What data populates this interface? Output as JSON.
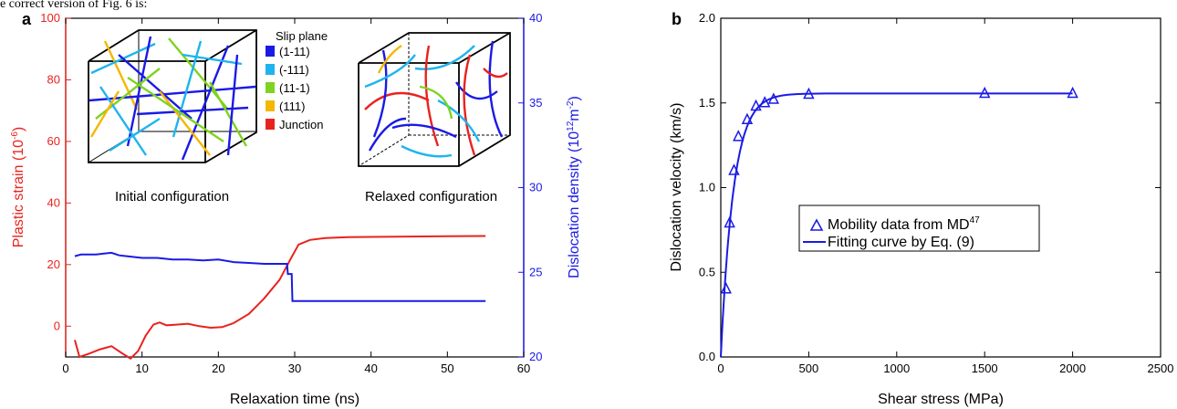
{
  "header_note": "e correct version of Fig. 6 is:",
  "colors": {
    "red": "#e8231e",
    "blue": "#1a1ae6",
    "black": "#000000"
  },
  "chart_data": [
    {
      "type": "line",
      "panel_label": "a",
      "xlabel": "Relaxation time (ns)",
      "ylabel_left_main": "Plastic strain (10",
      "ylabel_left_sup": "-6",
      "ylabel_left_end": ")",
      "ylabel_right_main": "Dislocation density (10",
      "ylabel_right_sup": "12",
      "ylabel_right_mid": "m",
      "ylabel_right_sup2": "-2",
      "ylabel_right_end": ")",
      "xlim": [
        0,
        60
      ],
      "ylim_left": [
        -10,
        100
      ],
      "ylim_right": [
        20,
        40
      ],
      "x_ticks": [
        0,
        10,
        20,
        30,
        40,
        50,
        60
      ],
      "y_ticks_left": [
        0,
        20,
        40,
        60,
        80,
        100
      ],
      "y_ticks_right": [
        20,
        25,
        30,
        35,
        40
      ],
      "series": [
        {
          "axis": "left",
          "color": "#e8231e",
          "points": [
            [
              1.2,
              -4.5
            ],
            [
              1.8,
              -10
            ],
            [
              3,
              -9
            ],
            [
              4.5,
              -7.5
            ],
            [
              6,
              -6.5
            ],
            [
              7.5,
              -9
            ],
            [
              8.5,
              -10.5
            ],
            [
              9.5,
              -8
            ],
            [
              10.5,
              -3
            ],
            [
              11.5,
              0.5
            ],
            [
              12.3,
              1.2
            ],
            [
              13.2,
              0.3
            ],
            [
              14.5,
              0.5
            ],
            [
              16,
              0.8
            ],
            [
              17.5,
              0
            ],
            [
              19,
              -0.5
            ],
            [
              20.5,
              -0.3
            ],
            [
              22,
              1
            ],
            [
              24,
              4
            ],
            [
              26,
              9
            ],
            [
              28,
              15
            ],
            [
              29.5,
              22
            ],
            [
              30.5,
              26.5
            ],
            [
              32,
              28
            ],
            [
              34,
              28.6
            ],
            [
              37,
              28.9
            ],
            [
              40,
              29
            ],
            [
              45,
              29.1
            ],
            [
              50,
              29.2
            ],
            [
              55,
              29.3
            ]
          ]
        },
        {
          "axis": "right",
          "color": "#1a1ae6",
          "points": [
            [
              1.2,
              25.95
            ],
            [
              2,
              26.05
            ],
            [
              3,
              26.05
            ],
            [
              4,
              26.05
            ],
            [
              5,
              26.1
            ],
            [
              6,
              26.15
            ],
            [
              7,
              26.0
            ],
            [
              8,
              25.95
            ],
            [
              10,
              25.85
            ],
            [
              12,
              25.85
            ],
            [
              14,
              25.75
            ],
            [
              16,
              25.75
            ],
            [
              18,
              25.7
            ],
            [
              20,
              25.75
            ],
            [
              22,
              25.6
            ],
            [
              24,
              25.55
            ],
            [
              26,
              25.5
            ],
            [
              28,
              25.5
            ],
            [
              29,
              25.5
            ],
            [
              29.1,
              24.9
            ],
            [
              29.6,
              24.9
            ],
            [
              29.7,
              23.3
            ],
            [
              35,
              23.3
            ],
            [
              45,
              23.3
            ],
            [
              55,
              23.3
            ]
          ]
        }
      ],
      "legend": {
        "title": "Slip plane",
        "items": [
          {
            "label": "(1-11)",
            "color": "#1a1ae6"
          },
          {
            "label": "(-111)",
            "color": "#1fb4ee"
          },
          {
            "label": "(11-1)",
            "color": "#7ed321"
          },
          {
            "label": "(111)",
            "color": "#f5b700"
          },
          {
            "label": "Junction",
            "color": "#e8231e"
          }
        ]
      },
      "inset_labels": {
        "initial": "Initial configuration",
        "relaxed": "Relaxed configuration"
      }
    },
    {
      "type": "line",
      "panel_label": "b",
      "xlabel": "Shear stress (MPa)",
      "ylabel": "Dislocation velocity (km/s)",
      "xlim": [
        0,
        2500
      ],
      "ylim": [
        0,
        2
      ],
      "x_ticks": [
        0,
        500,
        1000,
        1500,
        2000,
        2500
      ],
      "y_ticks": [
        "0.0",
        "0.5",
        "1.0",
        "1.5",
        "2.0"
      ],
      "series": [
        {
          "name": "Mobility data from MD",
          "name_sup": "47",
          "marker": "triangle",
          "color": "#1a1ae6",
          "x": [
            30,
            50,
            75,
            100,
            150,
            200,
            250,
            300,
            500,
            1500,
            2000
          ],
          "y": [
            0.4,
            0.79,
            1.1,
            1.3,
            1.4,
            1.48,
            1.5,
            1.52,
            1.55,
            1.555,
            1.555
          ]
        },
        {
          "name": "Fitting curve by Eq. (9)",
          "marker": "line",
          "color": "#1a1ae6",
          "fit": {
            "vmax": 1.556,
            "tau0": 72
          }
        }
      ]
    }
  ]
}
